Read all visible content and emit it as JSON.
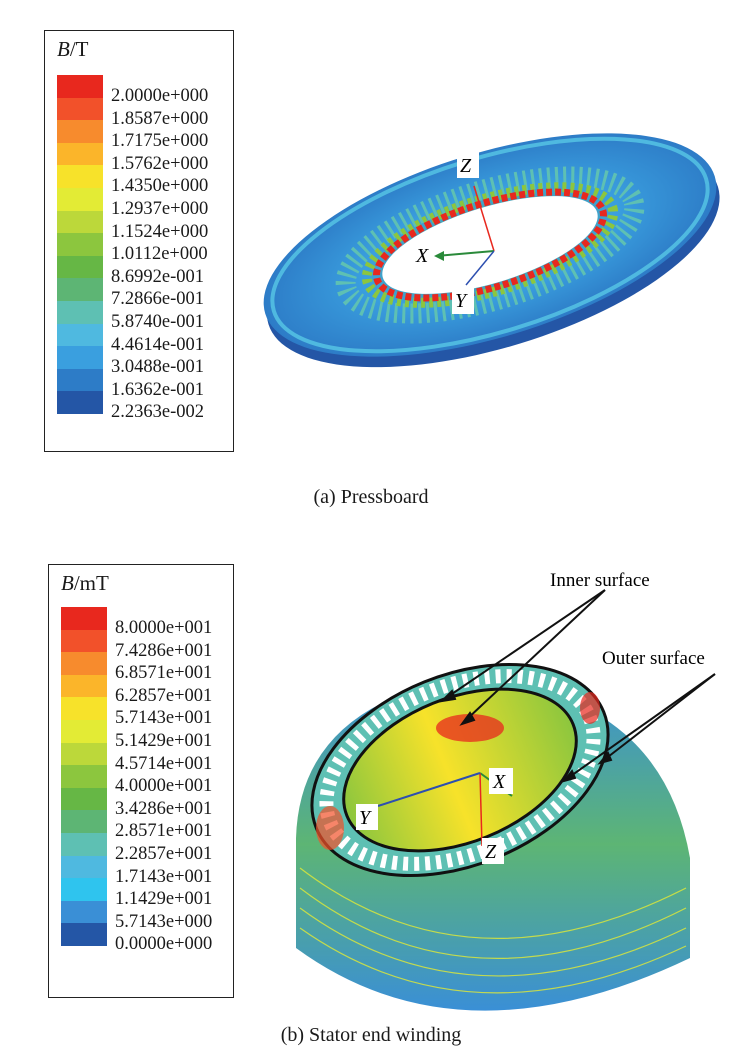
{
  "panel_a": {
    "caption": "(a) Pressboard",
    "legend": {
      "symbol": "B",
      "unit": "/T",
      "ticks": [
        "2.0000e+000",
        "1.8587e+000",
        "1.7175e+000",
        "1.5762e+000",
        "1.4350e+000",
        "1.2937e+000",
        "1.1524e+000",
        "1.0112e+000",
        "8.6992e-001",
        "7.2866e-001",
        "5.8740e-001",
        "4.4614e-001",
        "3.0488e-001",
        "1.6362e-001",
        "2.2363e-002"
      ],
      "colors": [
        "#e8281e",
        "#f2512a",
        "#f78b2d",
        "#fbb52a",
        "#f7e22a",
        "#e3eb35",
        "#bcd83a",
        "#8cc63e",
        "#66b745",
        "#5db574",
        "#5ec0b3",
        "#4fb9e0",
        "#3a9fdf",
        "#2d7cc7",
        "#2456a6"
      ]
    },
    "axes": {
      "x": "X",
      "y": "Y",
      "z": "Z"
    }
  },
  "panel_b": {
    "caption": "(b) Stator end winding",
    "legend": {
      "symbol": "B",
      "unit": "/mT",
      "ticks": [
        "8.0000e+001",
        "7.4286e+001",
        "6.8571e+001",
        "6.2857e+001",
        "5.7143e+001",
        "5.1429e+001",
        "4.5714e+001",
        "4.0000e+001",
        "3.4286e+001",
        "2.8571e+001",
        "2.2857e+001",
        "1.7143e+001",
        "1.1429e+001",
        "5.7143e+000",
        "0.0000e+000"
      ],
      "colors": [
        "#e8281e",
        "#f2512a",
        "#f78b2d",
        "#fbb52a",
        "#f7e22a",
        "#e3eb35",
        "#bcd83a",
        "#8cc63e",
        "#66b745",
        "#5db574",
        "#5ec0b3",
        "#4fb9e0",
        "#2fc4ee",
        "#3a8fd6",
        "#2456a6"
      ]
    },
    "axes": {
      "x": "X",
      "y": "Y",
      "z": "Z"
    },
    "annotations": {
      "inner": "Inner surface",
      "outer": "Outer surface"
    }
  }
}
